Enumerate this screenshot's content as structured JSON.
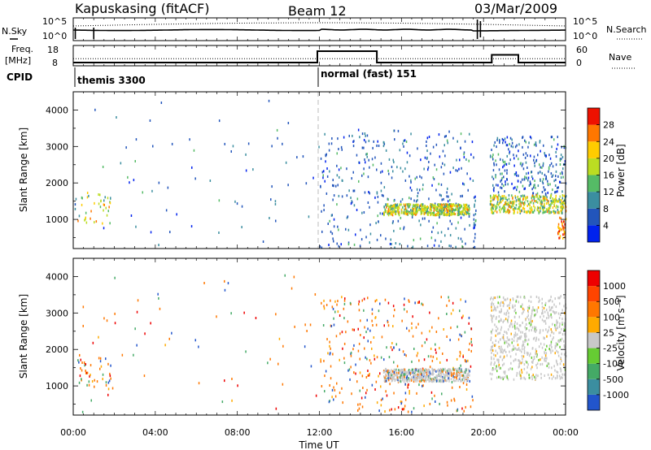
{
  "header": {
    "station": "Kapuskasing (fitACF)",
    "beam": "Beam 12",
    "date": "03/Mar/2009"
  },
  "chart_data": [
    {
      "type": "line",
      "panel": "noise",
      "left_label": "N.Sky",
      "right_label": "N.Search",
      "left_ticks": [
        "10^5",
        "10^0"
      ],
      "right_ticks": [
        "10^5",
        "10^0"
      ]
    },
    {
      "type": "line",
      "panel": "frequency",
      "left_label_1": "Freq.",
      "left_label_2": "[MHz]",
      "right_label": "Nave",
      "left_ticks": [
        18,
        8
      ],
      "right_ticks": [
        60,
        0
      ],
      "freq_steps": [
        [
          0,
          9.6
        ],
        [
          11.9,
          9.6
        ],
        [
          11.9,
          15.2
        ],
        [
          14.8,
          15.2
        ],
        [
          14.8,
          9.6
        ],
        [
          20.4,
          9.6
        ],
        [
          20.4,
          13.4
        ],
        [
          21.7,
          13.4
        ],
        [
          21.7,
          9.6
        ],
        [
          24,
          9.6
        ]
      ]
    },
    {
      "type": "table",
      "panel": "cpid",
      "label": "CPID",
      "modes": [
        {
          "start": 0,
          "text": "themis 3300"
        },
        {
          "start": 11.97,
          "text": "normal (fast) 151"
        }
      ]
    },
    {
      "type": "heatmap",
      "panel": "power",
      "ylabel": "Slant Range [km]",
      "ylim": [
        200,
        4500
      ],
      "yticks": [
        1000,
        2000,
        3000,
        4000
      ],
      "colorbar_label": "Power [dB]",
      "colorbar_ticks": [
        "28",
        "24",
        "20",
        "16",
        "12",
        "8",
        "4"
      ],
      "colors": [
        "#0022ee",
        "#2255bb",
        "#3b8ea0",
        "#55bb66",
        "#bbdd22",
        "#ffcc00",
        "#ff7700",
        "#ee1100"
      ]
    },
    {
      "type": "heatmap",
      "panel": "velocity",
      "ylabel": "Slant Range [km]",
      "ylim": [
        200,
        4500
      ],
      "yticks": [
        1000,
        2000,
        3000,
        4000
      ],
      "colorbar_label": "Velocity [m s⁻¹]",
      "colorbar_ticks": [
        "1000",
        "500",
        "100",
        "25",
        "-25",
        "-100",
        "-500",
        "-1000"
      ],
      "colors": [
        "#2255cc",
        "#3b8ea0",
        "#44aa66",
        "#66cc33",
        "#c8c8c8",
        "#ffaa00",
        "#ff7700",
        "#ff4400",
        "#ee0000"
      ]
    }
  ],
  "xaxis": {
    "label": "Time UT",
    "range_hours": [
      0,
      24
    ],
    "ticks": [
      "00:00",
      "04:00",
      "08:00",
      "12:00",
      "16:00",
      "20:00",
      "00:00"
    ]
  }
}
